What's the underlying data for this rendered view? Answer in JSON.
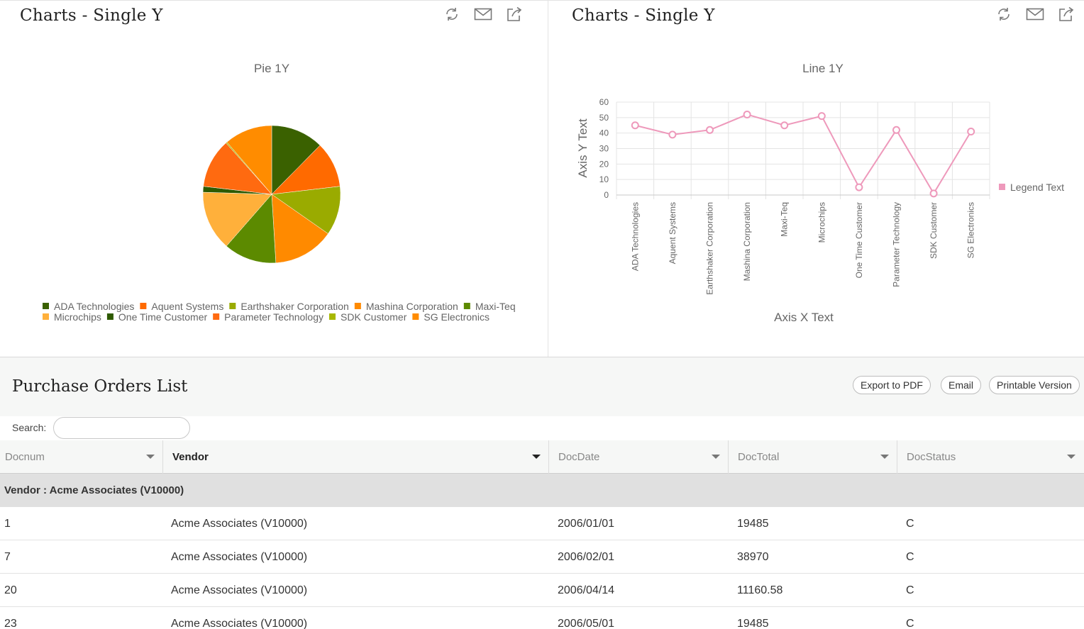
{
  "left_panel": {
    "title": "Charts - Single Y",
    "tools": [
      "refresh-icon",
      "email-icon",
      "export-icon"
    ]
  },
  "right_panel": {
    "title": "Charts - Single Y",
    "tools": [
      "refresh-icon",
      "email-icon",
      "export-icon"
    ]
  },
  "chart_data": [
    {
      "type": "pie",
      "title": "Pie 1Y",
      "categories": [
        "ADA Technologies",
        "Aquent Systems",
        "Earthshaker Corporation",
        "Mashina Corporation",
        "Maxi-Teq",
        "Microchips",
        "One Time Customer",
        "Parameter Technology",
        "SDK Customer",
        "SG Electronics"
      ],
      "values": [
        45,
        39,
        42,
        52,
        45,
        51,
        5,
        42,
        1,
        41
      ],
      "colors": [
        "#3a6100",
        "#ff6a00",
        "#9aab00",
        "#ff8a00",
        "#5c8a00",
        "#ffb03b",
        "#2e5a00",
        "#ff6a10",
        "#a8b800",
        "#ff8c00"
      ],
      "legend": "bottom"
    },
    {
      "type": "line",
      "title": "Line 1Y",
      "categories": [
        "ADA Technologies",
        "Aquent Systems",
        "Earthshaker Corporation",
        "Mashina Corporation",
        "Maxi-Teq",
        "Microchips",
        "One Time Customer",
        "Parameter Technology",
        "SDK Customer",
        "SG Electronics"
      ],
      "series": [
        {
          "name": "Legend Text",
          "values": [
            45,
            39,
            42,
            52,
            45,
            51,
            5,
            42,
            1,
            41
          ],
          "color": "#ee99bb"
        }
      ],
      "xlabel": "Axis X Text",
      "ylabel": "Axis Y Text",
      "ylim": [
        0,
        60
      ],
      "yticks": [
        0,
        10,
        20,
        30,
        40,
        50,
        60
      ],
      "grid": true,
      "legend": "right"
    }
  ],
  "purchase_orders": {
    "title": "Purchase Orders List",
    "buttons": {
      "pdf": "Export to PDF",
      "email": "Email",
      "print": "Printable Version"
    },
    "search_label": "Search:",
    "search_value": "",
    "columns": [
      "Docnum",
      "Vendor",
      "DocDate",
      "DocTotal",
      "DocStatus"
    ],
    "group_label": "Vendor : Acme Associates (V10000)",
    "rows": [
      [
        "1",
        "Acme Associates (V10000)",
        "2006/01/01",
        "19485",
        "C"
      ],
      [
        "7",
        "Acme Associates (V10000)",
        "2006/02/01",
        "38970",
        "C"
      ],
      [
        "20",
        "Acme Associates (V10000)",
        "2006/04/14",
        "11160.58",
        "C"
      ],
      [
        "23",
        "Acme Associates (V10000)",
        "2006/05/01",
        "19485",
        "C"
      ]
    ]
  }
}
